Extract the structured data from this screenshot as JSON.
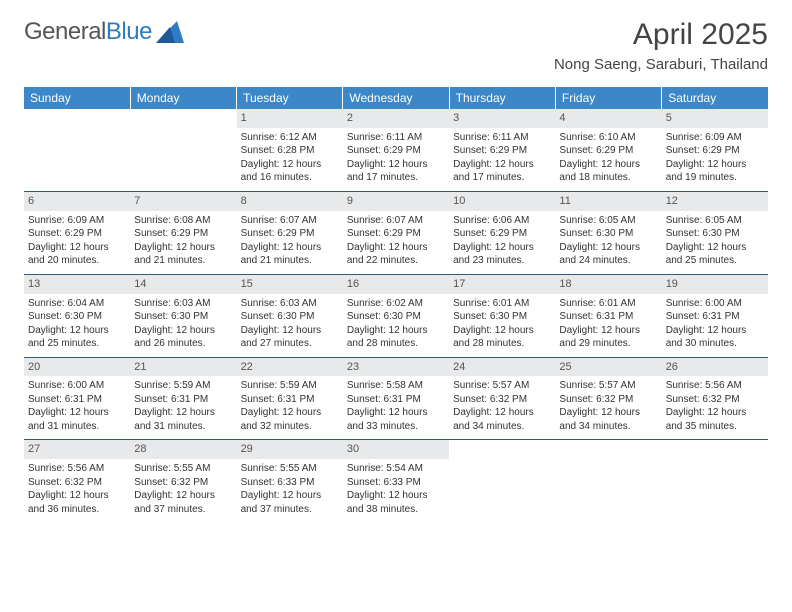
{
  "logo": {
    "part1": "General",
    "part2": "Blue"
  },
  "title": "April 2025",
  "subtitle": "Nong Saeng, Saraburi, Thailand",
  "colors": {
    "header_bg": "#3b87c8",
    "header_text": "#ffffff",
    "daynum_bg": "#e8e9ea",
    "row_border": "#2d5a8a",
    "logo_blue": "#2f7cc4"
  },
  "day_headers": [
    "Sunday",
    "Monday",
    "Tuesday",
    "Wednesday",
    "Thursday",
    "Friday",
    "Saturday"
  ],
  "weeks": [
    [
      {
        "day": "",
        "lines": []
      },
      {
        "day": "",
        "lines": []
      },
      {
        "day": "1",
        "lines": [
          "Sunrise: 6:12 AM",
          "Sunset: 6:28 PM",
          "Daylight: 12 hours and 16 minutes."
        ]
      },
      {
        "day": "2",
        "lines": [
          "Sunrise: 6:11 AM",
          "Sunset: 6:29 PM",
          "Daylight: 12 hours and 17 minutes."
        ]
      },
      {
        "day": "3",
        "lines": [
          "Sunrise: 6:11 AM",
          "Sunset: 6:29 PM",
          "Daylight: 12 hours and 17 minutes."
        ]
      },
      {
        "day": "4",
        "lines": [
          "Sunrise: 6:10 AM",
          "Sunset: 6:29 PM",
          "Daylight: 12 hours and 18 minutes."
        ]
      },
      {
        "day": "5",
        "lines": [
          "Sunrise: 6:09 AM",
          "Sunset: 6:29 PM",
          "Daylight: 12 hours and 19 minutes."
        ]
      }
    ],
    [
      {
        "day": "6",
        "lines": [
          "Sunrise: 6:09 AM",
          "Sunset: 6:29 PM",
          "Daylight: 12 hours and 20 minutes."
        ]
      },
      {
        "day": "7",
        "lines": [
          "Sunrise: 6:08 AM",
          "Sunset: 6:29 PM",
          "Daylight: 12 hours and 21 minutes."
        ]
      },
      {
        "day": "8",
        "lines": [
          "Sunrise: 6:07 AM",
          "Sunset: 6:29 PM",
          "Daylight: 12 hours and 21 minutes."
        ]
      },
      {
        "day": "9",
        "lines": [
          "Sunrise: 6:07 AM",
          "Sunset: 6:29 PM",
          "Daylight: 12 hours and 22 minutes."
        ]
      },
      {
        "day": "10",
        "lines": [
          "Sunrise: 6:06 AM",
          "Sunset: 6:29 PM",
          "Daylight: 12 hours and 23 minutes."
        ]
      },
      {
        "day": "11",
        "lines": [
          "Sunrise: 6:05 AM",
          "Sunset: 6:30 PM",
          "Daylight: 12 hours and 24 minutes."
        ]
      },
      {
        "day": "12",
        "lines": [
          "Sunrise: 6:05 AM",
          "Sunset: 6:30 PM",
          "Daylight: 12 hours and 25 minutes."
        ]
      }
    ],
    [
      {
        "day": "13",
        "lines": [
          "Sunrise: 6:04 AM",
          "Sunset: 6:30 PM",
          "Daylight: 12 hours and 25 minutes."
        ]
      },
      {
        "day": "14",
        "lines": [
          "Sunrise: 6:03 AM",
          "Sunset: 6:30 PM",
          "Daylight: 12 hours and 26 minutes."
        ]
      },
      {
        "day": "15",
        "lines": [
          "Sunrise: 6:03 AM",
          "Sunset: 6:30 PM",
          "Daylight: 12 hours and 27 minutes."
        ]
      },
      {
        "day": "16",
        "lines": [
          "Sunrise: 6:02 AM",
          "Sunset: 6:30 PM",
          "Daylight: 12 hours and 28 minutes."
        ]
      },
      {
        "day": "17",
        "lines": [
          "Sunrise: 6:01 AM",
          "Sunset: 6:30 PM",
          "Daylight: 12 hours and 28 minutes."
        ]
      },
      {
        "day": "18",
        "lines": [
          "Sunrise: 6:01 AM",
          "Sunset: 6:31 PM",
          "Daylight: 12 hours and 29 minutes."
        ]
      },
      {
        "day": "19",
        "lines": [
          "Sunrise: 6:00 AM",
          "Sunset: 6:31 PM",
          "Daylight: 12 hours and 30 minutes."
        ]
      }
    ],
    [
      {
        "day": "20",
        "lines": [
          "Sunrise: 6:00 AM",
          "Sunset: 6:31 PM",
          "Daylight: 12 hours and 31 minutes."
        ]
      },
      {
        "day": "21",
        "lines": [
          "Sunrise: 5:59 AM",
          "Sunset: 6:31 PM",
          "Daylight: 12 hours and 31 minutes."
        ]
      },
      {
        "day": "22",
        "lines": [
          "Sunrise: 5:59 AM",
          "Sunset: 6:31 PM",
          "Daylight: 12 hours and 32 minutes."
        ]
      },
      {
        "day": "23",
        "lines": [
          "Sunrise: 5:58 AM",
          "Sunset: 6:31 PM",
          "Daylight: 12 hours and 33 minutes."
        ]
      },
      {
        "day": "24",
        "lines": [
          "Sunrise: 5:57 AM",
          "Sunset: 6:32 PM",
          "Daylight: 12 hours and 34 minutes."
        ]
      },
      {
        "day": "25",
        "lines": [
          "Sunrise: 5:57 AM",
          "Sunset: 6:32 PM",
          "Daylight: 12 hours and 34 minutes."
        ]
      },
      {
        "day": "26",
        "lines": [
          "Sunrise: 5:56 AM",
          "Sunset: 6:32 PM",
          "Daylight: 12 hours and 35 minutes."
        ]
      }
    ],
    [
      {
        "day": "27",
        "lines": [
          "Sunrise: 5:56 AM",
          "Sunset: 6:32 PM",
          "Daylight: 12 hours and 36 minutes."
        ]
      },
      {
        "day": "28",
        "lines": [
          "Sunrise: 5:55 AM",
          "Sunset: 6:32 PM",
          "Daylight: 12 hours and 37 minutes."
        ]
      },
      {
        "day": "29",
        "lines": [
          "Sunrise: 5:55 AM",
          "Sunset: 6:33 PM",
          "Daylight: 12 hours and 37 minutes."
        ]
      },
      {
        "day": "30",
        "lines": [
          "Sunrise: 5:54 AM",
          "Sunset: 6:33 PM",
          "Daylight: 12 hours and 38 minutes."
        ]
      },
      {
        "day": "",
        "lines": []
      },
      {
        "day": "",
        "lines": []
      },
      {
        "day": "",
        "lines": []
      }
    ]
  ]
}
